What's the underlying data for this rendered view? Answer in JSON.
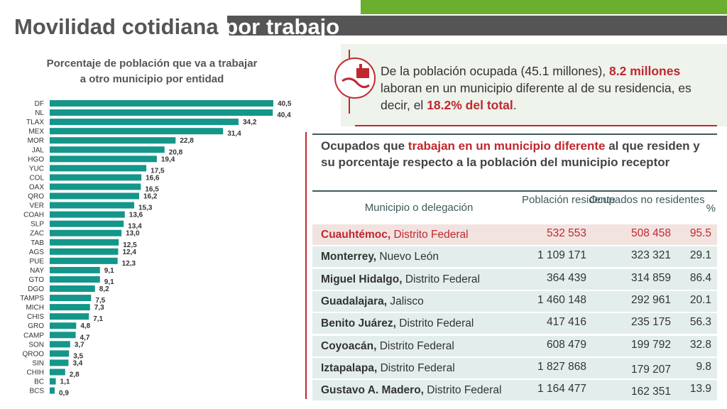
{
  "header": {
    "title_a": "Movilidad cotidiana",
    "title_b": "por trabajo"
  },
  "chart_data": {
    "type": "hbar",
    "title_lines": [
      "Porcentaje de población que va a trabajar",
      "a otro municipio por entidad"
    ],
    "color": "#14968a",
    "categories": [
      "DF",
      "NL",
      "TLAX",
      "MEX",
      "MOR",
      "JAL",
      "HGO",
      "YUC",
      "COL",
      "OAX",
      "QRO",
      "VER",
      "COAH",
      "SLP",
      "ZAC",
      "TAB",
      "AGS",
      "PUE",
      "NAY",
      "GTO",
      "DGO",
      "TAMPS",
      "MICH",
      "CHIS",
      "GRO",
      "CAMP",
      "SON",
      "QROO",
      "SIN",
      "CHIH",
      "BC",
      "BCS"
    ],
    "values": [
      40.5,
      40.4,
      34.2,
      31.4,
      22.8,
      20.8,
      19.4,
      17.5,
      16.6,
      16.5,
      16.2,
      15.3,
      13.6,
      13.4,
      13.0,
      12.5,
      12.4,
      12.3,
      9.1,
      9.1,
      8.2,
      7.5,
      7.3,
      7.1,
      4.8,
      4.7,
      3.7,
      3.5,
      3.4,
      2.8,
      1.1,
      0.9
    ],
    "value_labels": [
      "40,5",
      "40,4",
      "34,2",
      "31,4",
      "22,8",
      "20,8",
      "19,4",
      "17,5",
      "16,6",
      "16,5",
      "16,2",
      "15,3",
      "13,6",
      "13,4",
      "13,0",
      "12,5",
      "12,4",
      "12,3",
      "9,1",
      "9,1",
      "8,2",
      "7,5",
      "7,3",
      "7,1",
      "4,8",
      "4,7",
      "3,7",
      "3,5",
      "3,4",
      "2,8",
      "1,1",
      "0,9"
    ]
  },
  "callout": {
    "parts": [
      "De la población ocupada (45.1 millones), ",
      "8.2 millones",
      " laboran en un municipio diferente al de su residencia, es decir, el ",
      "18.2% del total",
      "."
    ]
  },
  "table": {
    "title_parts": [
      "Ocupados que ",
      "trabajan en un municipio diferente",
      " al que residen y su porcentaje respecto a la población del municipio receptor"
    ],
    "headers": [
      "Municipio o delegación",
      "Población residente",
      "Ocupados no residentes",
      "%"
    ],
    "rows": [
      [
        "Cuauhtémoc,",
        "Distrito Federal",
        "532 553",
        "508 458",
        "95.5"
      ],
      [
        "Monterrey,",
        "Nuevo León",
        "1 109 171",
        "323 321",
        "29.1"
      ],
      [
        "Miguel Hidalgo,",
        "Distrito Federal",
        "364 439",
        "314 859",
        "86.4"
      ],
      [
        "Guadalajara,",
        "Jalisco",
        "1 460 148",
        "292 961",
        "20.1"
      ],
      [
        "Benito Juárez,",
        "Distrito Federal",
        "417 416",
        "235 175",
        "56.3"
      ],
      [
        "Coyoacán,",
        "Distrito Federal",
        "608 479",
        "199 792",
        "32.8"
      ],
      [
        "Iztapalapa,",
        "Distrito Federal",
        "1 827 868",
        "179 207",
        "9.8"
      ],
      [
        "Gustavo A. Madero,",
        "Distrito Federal",
        "1 164 477",
        "162 351",
        "13.9"
      ]
    ]
  }
}
